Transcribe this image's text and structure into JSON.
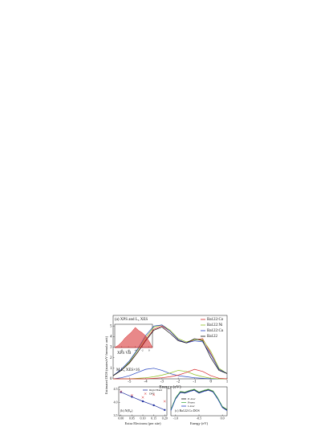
{
  "chart_data": [
    {
      "type": "line",
      "title": "(a) XPS and L₃ XES",
      "xlabel": "Energy (eV)",
      "ylabel": "Estimated DOS (states/eV formula unit)",
      "annotations": [
        "XPS VB",
        "M L₃ XES×16"
      ],
      "x": [
        -6,
        -5.5,
        -5,
        -4.5,
        -4,
        -3.5,
        -3,
        -2.5,
        -2,
        -1.5,
        -1,
        -0.5,
        0,
        0.5,
        1
      ],
      "series": [
        {
          "name": "Ba122:Co",
          "color": "#d62728",
          "values": [
            0.3,
            0.8,
            1.5,
            2.5,
            3.7,
            4.7,
            5.0,
            4.5,
            3.7,
            3.4,
            3.7,
            3.8,
            2.4,
            0.9,
            0.5
          ]
        },
        {
          "name": "Ba122:Ni",
          "color": "#8fbf1f",
          "values": [
            0.3,
            0.8,
            1.6,
            2.7,
            3.9,
            4.9,
            5.1,
            4.6,
            3.8,
            3.5,
            3.7,
            3.7,
            2.6,
            1.0,
            0.5
          ]
        },
        {
          "name": "Ba122:Cu",
          "color": "#1f3fbf",
          "values": [
            0.3,
            0.9,
            1.7,
            2.8,
            4.1,
            5.0,
            5.1,
            4.5,
            3.7,
            3.4,
            3.6,
            3.5,
            2.3,
            0.9,
            0.5
          ]
        },
        {
          "name": "Ba122",
          "color": "#111111",
          "values": [
            0.3,
            0.8,
            1.5,
            2.5,
            3.6,
            4.6,
            4.9,
            4.3,
            3.6,
            3.4,
            3.8,
            3.6,
            2.0,
            0.8,
            0.5
          ]
        },
        {
          "color": "#1f3fbf",
          "values": [
            0,
            0.1,
            0.3,
            0.6,
            0.9,
            1.0,
            0.8,
            0.5,
            0.3,
            0.2,
            0.1,
            0.05,
            0,
            0,
            0
          ]
        },
        {
          "color": "#8fbf1f",
          "values": [
            0,
            0,
            0,
            0.05,
            0.1,
            0.2,
            0.35,
            0.55,
            0.8,
            0.7,
            0.4,
            0.2,
            0.05,
            0,
            0
          ]
        },
        {
          "color": "#d62728",
          "values": [
            0,
            0,
            0,
            0,
            0,
            0.05,
            0.1,
            0.2,
            0.35,
            0.6,
            0.9,
            0.7,
            0.3,
            0.05,
            0
          ]
        }
      ],
      "xlim": [
        -6,
        1
      ],
      "ylim": [
        0,
        6
      ],
      "xticks": [
        -5,
        -4,
        -3,
        -2,
        -1,
        0,
        1
      ],
      "yticks": [
        0,
        1,
        2,
        3,
        4,
        5
      ]
    },
    {
      "type": "area",
      "x": [
        -10,
        -9,
        -8,
        -7,
        -6,
        -5,
        -4,
        -3,
        -2,
        -1,
        0,
        1
      ],
      "series": [
        {
          "color": "#d62728",
          "values": [
            0,
            0.1,
            0.25,
            0.45,
            0.6,
            0.75,
            0.95,
            0.8,
            0.7,
            0.55,
            0.3,
            0
          ]
        }
      ],
      "xlim": [
        -10,
        1
      ],
      "ylim": [
        0,
        1.1
      ],
      "xticks": [
        -8,
        -6,
        -4,
        -2,
        0
      ]
    },
    {
      "type": "line",
      "title": "(b) N(E",
      "title_sub": "F",
      "title_end": ")",
      "xlabel": "Extra Electrons (per site)",
      "x": [
        0,
        0.05,
        0.1,
        0.15,
        0.2
      ],
      "series": [
        {
          "name": "Rigid Band",
          "color": "#1f2f9f",
          "marker": "circle",
          "line": true,
          "values": [
            4.4,
            4.22,
            4.05,
            3.9,
            3.72
          ]
        },
        {
          "name": "DFT",
          "color": "#d62728",
          "marker": "x",
          "line": false,
          "values": [
            4.42,
            4.28,
            4.2,
            4.3,
            4.05
          ]
        }
      ],
      "xlim": [
        -0.01,
        0.21
      ],
      "ylim": [
        3.5,
        4.6
      ],
      "xticks": [
        {
          "value": 0,
          "label": "0.00"
        },
        0.05,
        {
          "value": 0.1,
          "label": "0.10"
        },
        0.15,
        {
          "value": 0.2,
          "label": "0.20"
        }
      ],
      "yticks": [
        3.5,
        {
          "value": 4,
          "label": "4.0"
        },
        4.5
      ]
    },
    {
      "type": "line",
      "title": "(c) Ba122:Co DOS",
      "xlabel": "Energy (eV)",
      "x": [
        -1.1,
        -1.0,
        -0.9,
        -0.8,
        -0.7,
        -0.6,
        -0.5,
        -0.4,
        -0.3,
        -0.2,
        -0.1,
        0,
        0.1
      ],
      "series": [
        {
          "name": "P-4m2",
          "color": "#111111",
          "values": [
            1.0,
            3.0,
            4.1,
            4.0,
            4.3,
            4.5,
            4.0,
            4.3,
            4.5,
            4.2,
            3.0,
            1.5,
            1.0
          ]
        },
        {
          "name": "Pmmn",
          "color": "#4caf50",
          "values": [
            1.1,
            3.1,
            4.2,
            4.1,
            4.4,
            4.6,
            4.1,
            4.4,
            4.6,
            4.3,
            3.1,
            1.6,
            1.1
          ]
        },
        {
          "name": "I-4m2",
          "color": "#1f3fbf",
          "values": [
            0.9,
            2.9,
            4.0,
            3.9,
            4.2,
            4.4,
            3.9,
            4.2,
            4.4,
            4.1,
            2.9,
            1.4,
            0.9
          ]
        }
      ],
      "xlim": [
        -1.1,
        0.1
      ],
      "ylim": [
        0,
        5
      ],
      "xticks": [
        {
          "value": -1,
          "label": "-1.0"
        },
        -0.5,
        {
          "value": 0,
          "label": "0.0"
        }
      ]
    }
  ]
}
